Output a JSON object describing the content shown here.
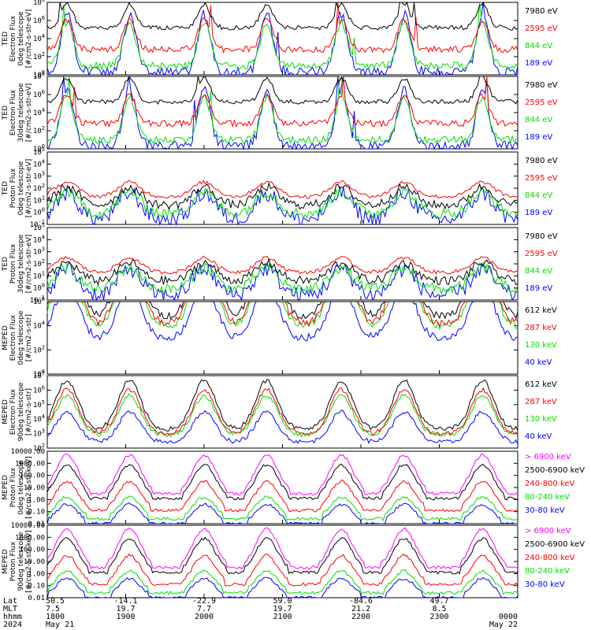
{
  "chart_data": {
    "type": "line",
    "colors": {
      "black": "#000000",
      "red": "#ff0000",
      "green": "#00e000",
      "blue": "#0000ff",
      "magenta": "#ff00ff"
    },
    "panels": [
      {
        "ylabel": [
          "TED",
          "Electron Flux",
          "0deg telescope",
          "[#/cm2-s-str-eV]"
        ],
        "yscale": "log",
        "yticks": [
          "10^0",
          "10^2",
          "10^4",
          "10^6",
          "10^8"
        ],
        "ylim": [
          1,
          100000000
        ],
        "style": "ted-e",
        "legend": [
          {
            "label": "7980 eV",
            "color": "black"
          },
          {
            "label": "2595 eV",
            "color": "red"
          },
          {
            "label": "844 eV",
            "color": "green"
          },
          {
            "label": "189 eV",
            "color": "blue"
          }
        ]
      },
      {
        "ylabel": [
          "TED",
          "Electron Flux",
          "30deg telescope",
          "[#/cm2-s-str-eV]"
        ],
        "yscale": "log",
        "yticks": [
          "10^0",
          "10^2",
          "10^4",
          "10^6",
          "10^8"
        ],
        "ylim": [
          1,
          100000000
        ],
        "style": "ted-e",
        "legend": [
          {
            "label": "7980 eV",
            "color": "black"
          },
          {
            "label": "2595 eV",
            "color": "red"
          },
          {
            "label": "844 eV",
            "color": "green"
          },
          {
            "label": "189 eV",
            "color": "blue"
          }
        ]
      },
      {
        "ylabel": [
          "TED",
          "Proton Flux",
          "0deg telescope",
          "[#/cm2-s-str-eV]"
        ],
        "yscale": "log",
        "yticks": [
          "10^-1",
          "10^0",
          "10^1",
          "10^2",
          "10^3",
          "10^4",
          "10^5"
        ],
        "ylim": [
          0.1,
          100000
        ],
        "style": "ted-p",
        "legend": [
          {
            "label": "7980 eV",
            "color": "black"
          },
          {
            "label": "2595 eV",
            "color": "red"
          },
          {
            "label": "844 eV",
            "color": "green"
          },
          {
            "label": "189 eV",
            "color": "blue"
          }
        ]
      },
      {
        "ylabel": [
          "TED",
          "Proton Flux",
          "30deg telescope",
          "[#/cm2-s-str-eV]"
        ],
        "yscale": "log",
        "yticks": [
          "10^-1",
          "10^0",
          "10^1",
          "10^2",
          "10^3",
          "10^4",
          "10^5"
        ],
        "ylim": [
          0.1,
          100000
        ],
        "style": "ted-p",
        "legend": [
          {
            "label": "7980 eV",
            "color": "black"
          },
          {
            "label": "2595 eV",
            "color": "red"
          },
          {
            "label": "844 eV",
            "color": "green"
          },
          {
            "label": "189 eV",
            "color": "blue"
          }
        ]
      },
      {
        "ylabel": [
          "MEPED",
          "Electron Flux",
          "0deg telescope",
          "[#/cm2-s-str]"
        ],
        "yscale": "log",
        "yticks": [
          "10^0",
          "10^2",
          "10^4",
          "10^6"
        ],
        "ylim": [
          1,
          10000000
        ],
        "style": "meped-e",
        "legend": [
          {
            "label": "612 keV",
            "color": "black"
          },
          {
            "label": "287 keV",
            "color": "red"
          },
          {
            "label": "130 keV",
            "color": "green"
          },
          {
            "label": "40 keV",
            "color": "blue"
          }
        ]
      },
      {
        "ylabel": [
          "MEPED",
          "Electron Flux",
          "90deg telescope",
          "[#/cm2-s-str]"
        ],
        "yscale": "log",
        "yticks": [
          "10^2",
          "10^3",
          "10^4",
          "10^5",
          "10^6",
          "10^7"
        ],
        "ylim": [
          100,
          10000000
        ],
        "style": "meped-e90",
        "legend": [
          {
            "label": "612 keV",
            "color": "black"
          },
          {
            "label": "287 keV",
            "color": "red"
          },
          {
            "label": "130 keV",
            "color": "green"
          },
          {
            "label": "40 keV",
            "color": "blue"
          }
        ]
      },
      {
        "ylabel": [
          "MEPED",
          "Proton Flux",
          "0deg telescope",
          "[#/cm2-s-str-keV]"
        ],
        "yscale": "log",
        "yticks": [
          "0.01",
          "0.10",
          "1.00",
          "10.00",
          "100.00",
          "1000.00",
          "10000.00"
        ],
        "ylim": [
          0.01,
          10000
        ],
        "style": "meped-p",
        "legend": [
          {
            "label": "> 6900 keV",
            "color": "magenta"
          },
          {
            "label": "2500-6900 keV",
            "color": "black"
          },
          {
            "label": "240-800 keV",
            "color": "red"
          },
          {
            "label": "80-240 keV",
            "color": "green"
          },
          {
            "label": "30-80 keV",
            "color": "blue"
          }
        ]
      },
      {
        "ylabel": [
          "MEPED",
          "Proton Flux",
          "90deg telescope",
          "[#/cm2-s-str-keV]"
        ],
        "yscale": "log",
        "yticks": [
          "0.01",
          "0.10",
          "1.00",
          "10.00",
          "100.00",
          "1000.00",
          "10000.00"
        ],
        "ylim": [
          0.01,
          10000
        ],
        "style": "meped-p",
        "legend": [
          {
            "label": "> 6900 keV",
            "color": "magenta"
          },
          {
            "label": "2500-6900 keV",
            "color": "black"
          },
          {
            "label": "240-800 keV",
            "color": "red"
          },
          {
            "label": "80-240 keV",
            "color": "green"
          },
          {
            "label": "30-80 keV",
            "color": "blue"
          }
        ]
      }
    ],
    "x_axis": {
      "row_labels": [
        "Lat",
        "MLT",
        "hhmm",
        "2024"
      ],
      "ticks": [
        {
          "lat": "50.5",
          "mlt": "7.5",
          "hhmm": "1800",
          "date": "May 21"
        },
        {
          "lat": "-14.1",
          "mlt": "19.7",
          "hhmm": "1900",
          "date": ""
        },
        {
          "lat": "-22.9",
          "mlt": "7.7",
          "hhmm": "2000",
          "date": ""
        },
        {
          "lat": "59.0",
          "mlt": "19.7",
          "hhmm": "2100",
          "date": ""
        },
        {
          "lat": "-84.6",
          "mlt": "21.2",
          "hhmm": "2200",
          "date": ""
        },
        {
          "lat": "49.7",
          "mlt": "8.5",
          "hhmm": "2300",
          "date": ""
        },
        {
          "lat": "",
          "mlt": "",
          "hhmm": "0000",
          "date": "May 22"
        }
      ],
      "time_range_hours": [
        0,
        6
      ],
      "pass_centers_hours": [
        0.25,
        1.05,
        2.0,
        2.8,
        3.75,
        4.55,
        5.55
      ]
    }
  }
}
